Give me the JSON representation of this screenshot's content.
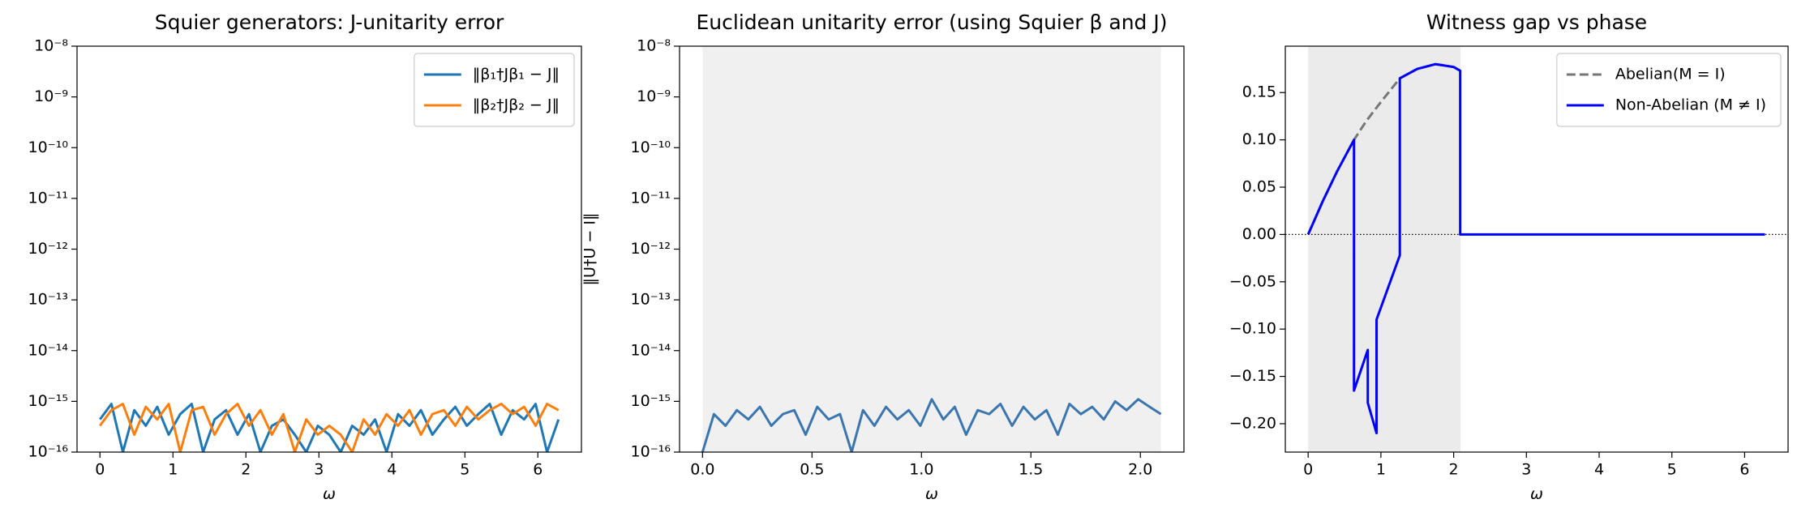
{
  "chart_data": [
    {
      "type": "line",
      "title": "Squier generators: J-unitarity error",
      "x_label": "ω",
      "log_y": true,
      "legend": "upper right",
      "xlim": [
        -0.314,
        6.597
      ],
      "xticks": [
        0,
        1,
        2,
        3,
        4,
        5,
        6
      ],
      "ylim": [
        1e-16,
        1e-08
      ],
      "yticks": [
        {
          "value": 1e-16,
          "label": "10⁻¹⁶"
        },
        {
          "value": 1e-15,
          "label": "10⁻¹⁵"
        },
        {
          "value": 1e-14,
          "label": "10⁻¹⁴"
        },
        {
          "value": 1e-13,
          "label": "10⁻¹³"
        },
        {
          "value": 1e-12,
          "label": "10⁻¹²"
        },
        {
          "value": 1e-11,
          "label": "10⁻¹¹"
        },
        {
          "value": 1e-10,
          "label": "10⁻¹⁰"
        },
        {
          "value": 1e-09,
          "label": "10⁻⁹"
        },
        {
          "value": 1e-08,
          "label": "10⁻⁸"
        }
      ],
      "x": [
        0,
        0.157,
        0.314,
        0.471,
        0.628,
        0.785,
        0.942,
        1.1,
        1.257,
        1.414,
        1.571,
        1.728,
        1.885,
        2.042,
        2.199,
        2.356,
        2.513,
        2.67,
        2.827,
        2.985,
        3.142,
        3.299,
        3.456,
        3.613,
        3.77,
        3.927,
        4.084,
        4.241,
        4.398,
        4.555,
        4.712,
        4.869,
        5.027,
        5.184,
        5.341,
        5.498,
        5.655,
        5.812,
        5.969,
        6.126,
        6.283
      ],
      "series": [
        {
          "name": "‖β₁†Jβ₁ − J‖",
          "color": "#1f77b4",
          "values": [
            4.4e-16,
            8.9e-16,
            1e-16,
            6.7e-16,
            3.3e-16,
            7.8e-16,
            2.2e-16,
            5.6e-16,
            8.9e-16,
            1e-16,
            4.4e-16,
            6.7e-16,
            2.2e-16,
            5.6e-16,
            1e-16,
            3.3e-16,
            4.4e-16,
            2.2e-16,
            1e-16,
            3.3e-16,
            2.2e-16,
            1e-16,
            3.3e-16,
            2.2e-16,
            4.4e-16,
            1e-16,
            5.6e-16,
            3.3e-16,
            6.7e-16,
            2.2e-16,
            4.4e-16,
            7.8e-16,
            3.3e-16,
            5.6e-16,
            8.9e-16,
            2.2e-16,
            6.7e-16,
            4.4e-16,
            8.9e-16,
            1e-16,
            4.4e-16
          ]
        },
        {
          "name": "‖β₂†Jβ₂ − J‖",
          "color": "#ff7f0e",
          "values": [
            3.3e-16,
            6.7e-16,
            8.9e-16,
            2.2e-16,
            7.8e-16,
            4.4e-16,
            8.9e-16,
            1e-16,
            6.7e-16,
            7.8e-16,
            2.2e-16,
            5.6e-16,
            8.9e-16,
            3.3e-16,
            6.7e-16,
            2.2e-16,
            5.6e-16,
            1e-16,
            4.4e-16,
            2.2e-16,
            3.3e-16,
            2.2e-16,
            1e-16,
            4.4e-16,
            2.2e-16,
            5.6e-16,
            3.3e-16,
            6.7e-16,
            2.2e-16,
            5.6e-16,
            6.7e-16,
            3.3e-16,
            7.8e-16,
            4.4e-16,
            6.7e-16,
            8.9e-16,
            5.6e-16,
            7.8e-16,
            3.3e-16,
            8.9e-16,
            6.7e-16
          ]
        }
      ]
    },
    {
      "type": "line",
      "title": "Euclidean unitarity error (using Squier β and J)",
      "x_label": "ω",
      "y_label": "‖U†U − I‖",
      "log_y": true,
      "shaded_span": [
        0,
        2.094
      ],
      "shade_color": "#f0f0f0",
      "xlim": [
        -0.105,
        2.199
      ],
      "xticks": [
        {
          "value": 0,
          "label": "0.0"
        },
        {
          "value": 0.5,
          "label": "0.5"
        },
        {
          "value": 1,
          "label": "1.0"
        },
        {
          "value": 1.5,
          "label": "1.5"
        },
        {
          "value": 2,
          "label": "2.0"
        }
      ],
      "ylim": [
        1e-16,
        1e-08
      ],
      "yticks": [
        {
          "value": 1e-16,
          "label": "10⁻¹⁶"
        },
        {
          "value": 1e-15,
          "label": "10⁻¹⁵"
        },
        {
          "value": 1e-14,
          "label": "10⁻¹⁴"
        },
        {
          "value": 1e-13,
          "label": "10⁻¹³"
        },
        {
          "value": 1e-12,
          "label": "10⁻¹²"
        },
        {
          "value": 1e-11,
          "label": "10⁻¹¹"
        },
        {
          "value": 1e-10,
          "label": "10⁻¹⁰"
        },
        {
          "value": 1e-09,
          "label": "10⁻⁹"
        },
        {
          "value": 1e-08,
          "label": "10⁻⁸"
        }
      ],
      "x": [
        0,
        0.052,
        0.105,
        0.157,
        0.209,
        0.262,
        0.314,
        0.367,
        0.419,
        0.471,
        0.524,
        0.576,
        0.628,
        0.681,
        0.733,
        0.785,
        0.838,
        0.89,
        0.942,
        0.995,
        1.047,
        1.1,
        1.152,
        1.204,
        1.257,
        1.309,
        1.361,
        1.414,
        1.466,
        1.518,
        1.571,
        1.623,
        1.676,
        1.728,
        1.78,
        1.833,
        1.885,
        1.937,
        1.99,
        2.042,
        2.094
      ],
      "series": [
        {
          "color": "#3b76af",
          "values": [
            1e-16,
            5.6e-16,
            3.3e-16,
            6.7e-16,
            4.4e-16,
            7.8e-16,
            3.3e-16,
            5.6e-16,
            6.7e-16,
            2.2e-16,
            7.8e-16,
            4.4e-16,
            5.6e-16,
            1e-16,
            6.7e-16,
            3.3e-16,
            7.8e-16,
            4.4e-16,
            6.7e-16,
            3.3e-16,
            1.1e-15,
            4.4e-16,
            7.8e-16,
            2.2e-16,
            6.7e-16,
            5.6e-16,
            8.9e-16,
            3.3e-16,
            7.8e-16,
            4.4e-16,
            6.7e-16,
            2.2e-16,
            8.9e-16,
            5.6e-16,
            7.8e-16,
            4.4e-16,
            1e-15,
            6.7e-16,
            1.1e-15,
            7.8e-16,
            5.6e-16
          ]
        }
      ]
    },
    {
      "type": "line",
      "title": "Witness gap vs phase",
      "x_label": "ω",
      "log_y": false,
      "legend": "upper right",
      "shaded_span": [
        0,
        2.094
      ],
      "shade_color": "#ebebeb",
      "hline": 0,
      "xlim": [
        -0.314,
        6.597
      ],
      "xticks": [
        0,
        1,
        2,
        3,
        4,
        5,
        6
      ],
      "ylim": [
        -0.23,
        0.199
      ],
      "yticks": [
        {
          "value": -0.2,
          "label": "−0.20"
        },
        {
          "value": -0.15,
          "label": "−0.15"
        },
        {
          "value": -0.1,
          "label": "−0.10"
        },
        {
          "value": -0.05,
          "label": "−0.05"
        },
        {
          "value": 0,
          "label": "0.00"
        },
        {
          "value": 0.05,
          "label": "0.05"
        },
        {
          "value": 0.1,
          "label": "0.10"
        },
        {
          "value": 0.15,
          "label": "0.15"
        }
      ],
      "series": [
        {
          "name": "Abelian(M = I)",
          "color": "#777777",
          "dashed": true,
          "x": [
            0,
            0.2,
            0.4,
            0.63,
            0.8,
            1.0,
            1.26,
            1.5,
            1.75,
            2.0,
            2.09
          ],
          "values": [
            0,
            0.035,
            0.067,
            0.1,
            0.12,
            0.14,
            0.165,
            0.175,
            0.18,
            0.177,
            0.173
          ]
        },
        {
          "name": "Non-Abelian (M ≠ I)",
          "color": "#0000ff",
          "x": [
            0,
            0.2,
            0.4,
            0.63,
            0.63,
            0.82,
            0.82,
            0.94,
            0.94,
            1.26,
            1.26,
            1.5,
            1.75,
            2.0,
            2.09,
            2.09,
            6.28
          ],
          "values": [
            0,
            0.035,
            0.067,
            0.1,
            -0.165,
            -0.122,
            -0.178,
            -0.21,
            -0.09,
            -0.022,
            0.165,
            0.175,
            0.18,
            0.177,
            0.173,
            0,
            0
          ]
        }
      ]
    }
  ]
}
